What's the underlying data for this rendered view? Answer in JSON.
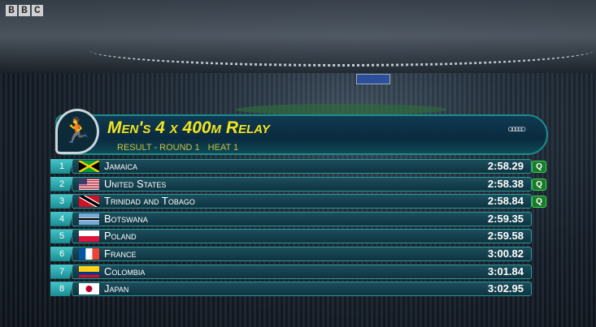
{
  "broadcaster": "BBC",
  "event": {
    "title": "Men's 4 x 400m Relay",
    "subtitle_parts": [
      "RESULT - ROUND 1",
      "HEAT 1"
    ]
  },
  "colors": {
    "title": "#f2e520",
    "qualified": "#1a7a2a",
    "row_accent": "#2a9a9e"
  },
  "results": [
    {
      "rank": "1",
      "country": "Jamaica",
      "time": "2:58.29",
      "q": "Q",
      "flag": "jamaica"
    },
    {
      "rank": "2",
      "country": "United States",
      "time": "2:58.38",
      "q": "Q",
      "flag": "usa"
    },
    {
      "rank": "3",
      "country": "Trinidad and Tobago",
      "time": "2:58.84",
      "q": "Q",
      "flag": "trinidad"
    },
    {
      "rank": "4",
      "country": "Botswana",
      "time": "2:59.35",
      "flag": "botswana"
    },
    {
      "rank": "5",
      "country": "Poland",
      "time": "2:59.58",
      "flag": "poland"
    },
    {
      "rank": "6",
      "country": "France",
      "time": "3:00.82",
      "flag": "france"
    },
    {
      "rank": "7",
      "country": "Colombia",
      "time": "3:01.84",
      "flag": "colombia"
    },
    {
      "rank": "8",
      "country": "Japan",
      "time": "3:02.95",
      "flag": "japan"
    }
  ]
}
